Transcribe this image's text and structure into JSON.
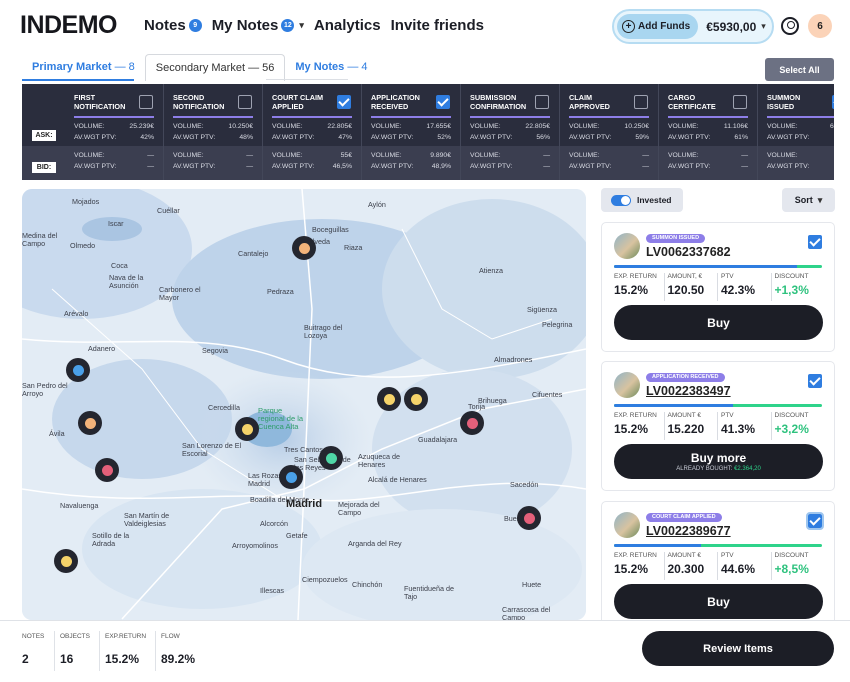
{
  "header": {
    "logo": "INDEMO",
    "nav": [
      {
        "label": "Notes",
        "badge": "9"
      },
      {
        "label": "My Notes",
        "badge": "12"
      },
      {
        "label": "Analytics"
      },
      {
        "label": "Invite friends"
      }
    ],
    "add_funds": "Add Funds",
    "balance": "€5930,00",
    "notifications": "6"
  },
  "tabs": [
    {
      "label": "Primary Market",
      "count": "— 8"
    },
    {
      "label": "Secondary Market",
      "count": "— 56"
    },
    {
      "label": "My Notes",
      "count": "— 4"
    }
  ],
  "select_all": "Select All",
  "band": {
    "ask_label": "ASK:",
    "bid_label": "BID:",
    "columns": [
      {
        "title": "First notification",
        "checked": false,
        "ask_volume": "25.239€",
        "ask_ptv": "42%",
        "bid_volume": "—",
        "bid_ptv": "—"
      },
      {
        "title": "Second notification",
        "checked": false,
        "ask_volume": "10.250€",
        "ask_ptv": "48%",
        "bid_volume": "—",
        "bid_ptv": "—"
      },
      {
        "title": "Court claim applied",
        "checked": true,
        "ask_volume": "22.805€",
        "ask_ptv": "47%",
        "bid_volume": "55€",
        "bid_ptv": "46,5%"
      },
      {
        "title": "Application received",
        "checked": true,
        "ask_volume": "17.655€",
        "ask_ptv": "52%",
        "bid_volume": "9.890€",
        "bid_ptv": "48,9%"
      },
      {
        "title": "Submission confirmation",
        "checked": false,
        "ask_volume": "22.805€",
        "ask_ptv": "56%",
        "bid_volume": "—",
        "bid_ptv": "—"
      },
      {
        "title": "Claim approved",
        "checked": false,
        "ask_volume": "10.250€",
        "ask_ptv": "59%",
        "bid_volume": "—",
        "bid_ptv": "—"
      },
      {
        "title": "Cargo certificate",
        "checked": false,
        "ask_volume": "11.106€",
        "ask_ptv": "61%",
        "bid_volume": "—",
        "bid_ptv": "—"
      },
      {
        "title": "Summon issued",
        "checked": true,
        "ask_volume": "63.29",
        "ask_ptv": "6",
        "bid_volume": "5.36",
        "bid_ptv": "5"
      }
    ],
    "volume_key": "VOLUME:",
    "ptv_key": "AV.WGT PTV:"
  },
  "map": {
    "towns": [
      "Mojados",
      "Cuéllar",
      "Aylón",
      "Iscar",
      "Medina del Campo",
      "Olmedo",
      "Boceguillas",
      "Sepúlveda",
      "Riaza",
      "Cantalejo",
      "Coca",
      "Nava de la Asunción",
      "Carbonero el Mayor",
      "Atienza",
      "Pedraza",
      "Sigüenza",
      "Arévalo",
      "Buitrago del Lozoya",
      "Pelegrina",
      "Adanero",
      "Segovia",
      "Almadrones",
      "San Pedro del Arroyo",
      "Cifuentes",
      "Cercedilla",
      "Torija",
      "Brihuega",
      "Ávila",
      "Parque regional de la Cuenca Alta",
      "San Lorenzo de El Escorial",
      "Tres Cantos",
      "Guadalajara",
      "San Sebastián de los Reyes",
      "Azuqueca de Henares",
      "Las Rozas de Madrid",
      "Alcalá de Henares",
      "Sacedón",
      "Navaluenga",
      "Boadilla del Monte",
      "Madrid",
      "Mejorada del Campo",
      "San Martín de Valdeiglesias",
      "Alcorcón",
      "Getafe",
      "Buendía",
      "Sotillo de la Adrada",
      "Arroyomolinos",
      "Arganda del Rey",
      "Ciempozuelos",
      "Chinchón",
      "Illescas",
      "Fuentidueña de Tajo",
      "Huete",
      "Carrascosa del Campo"
    ]
  },
  "sidebar": {
    "invested_label": "Invested",
    "sort_label": "Sort",
    "cards": [
      {
        "status": "Summon issued",
        "id": "LV0062337682",
        "progress": 0.88,
        "exp_return_k": "EXP. RETURN",
        "exp_return": "15.2%",
        "amount_k": "AMOUNT, €",
        "amount": "120.50",
        "ptv_k": "PTV",
        "ptv": "42.3%",
        "discount_k": "DISCOUNT",
        "discount": "+1,3%",
        "button": "Buy",
        "button_sub": ""
      },
      {
        "status": "Application received",
        "id": "LV0022383497",
        "progress": 0.57,
        "exp_return_k": "EXP. RETURN",
        "exp_return": "15.2%",
        "amount_k": "AMOUNT €",
        "amount": "15.220",
        "ptv_k": "PTV",
        "ptv": "41.3%",
        "discount_k": "DISCOUNT",
        "discount": "+3,2%",
        "button": "Buy more",
        "button_sub_prefix": "ALREADY BOUGHT: ",
        "button_sub": "€2.364,20"
      },
      {
        "status": "Court claim applied",
        "id": "LV0022389677",
        "progress": 0.42,
        "exp_return_k": "EXP. RETURN",
        "exp_return": "15.2%",
        "amount_k": "AMOUNT €",
        "amount": "20.300",
        "ptv_k": "PTV",
        "ptv": "44.6%",
        "discount_k": "DISCOUNT",
        "discount": "+8,5%",
        "button": "Buy",
        "button_sub": ""
      }
    ]
  },
  "footer": {
    "stats": [
      {
        "label": "NOTES",
        "value": "2"
      },
      {
        "label": "OBJECTS",
        "value": "16"
      },
      {
        "label": "EXP.RETURN",
        "value": "15.2%"
      },
      {
        "label": "FLOW",
        "value": "89.2%"
      }
    ],
    "review_button": "Review Items"
  },
  "colors": {
    "accent": "#2f7de0",
    "dark": "#1c1e26",
    "band": "#2a2d3d",
    "positive": "#2ec27e",
    "status_badge": "#8d7ee8"
  }
}
